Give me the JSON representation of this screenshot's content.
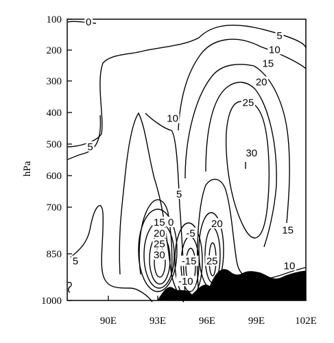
{
  "chart_data": {
    "type": "contour",
    "title": "",
    "xlabel": "",
    "ylabel": "hPa",
    "x_tick_labels": [
      "90E",
      "93E",
      "96E",
      "99E",
      "102E"
    ],
    "x_ticks": [
      90,
      93,
      96,
      99,
      102
    ],
    "xlim": [
      87.5,
      102
    ],
    "y_tick_labels": [
      "100",
      "200",
      "300",
      "400",
      "500",
      "600",
      "700",
      "850",
      "1000"
    ],
    "y_ticks": [
      100,
      200,
      300,
      400,
      500,
      600,
      700,
      850,
      1000
    ],
    "ylim": [
      100,
      1000
    ],
    "contour_levels": [
      -15,
      -10,
      -5,
      0,
      5,
      10,
      15,
      20,
      25,
      30
    ],
    "contour_labels": [
      {
        "text": "0",
        "lon": 88.8,
        "p": 115
      },
      {
        "text": "5",
        "lon": 100.4,
        "p": 160
      },
      {
        "text": "10",
        "lon": 100.1,
        "p": 205
      },
      {
        "text": "15",
        "lon": 99.7,
        "p": 250
      },
      {
        "text": "20",
        "lon": 99.3,
        "p": 310
      },
      {
        "text": "25",
        "lon": 98.5,
        "p": 375
      },
      {
        "text": "30",
        "lon": 98.7,
        "p": 535
      },
      {
        "text": "10",
        "lon": 93.9,
        "p": 425
      },
      {
        "text": "5",
        "lon": 88.9,
        "p": 515
      },
      {
        "text": "5",
        "lon": 94.3,
        "p": 665
      },
      {
        "text": "15",
        "lon": 93.1,
        "p": 755
      },
      {
        "text": "0",
        "lon": 93.8,
        "p": 755
      },
      {
        "text": "20",
        "lon": 93.1,
        "p": 790
      },
      {
        "text": "-5",
        "lon": 95.0,
        "p": 790
      },
      {
        "text": "20",
        "lon": 96.6,
        "p": 760
      },
      {
        "text": "25",
        "lon": 93.1,
        "p": 825
      },
      {
        "text": "-15",
        "lon": 94.9,
        "p": 880
      },
      {
        "text": "25",
        "lon": 96.3,
        "p": 880
      },
      {
        "text": "30",
        "lon": 93.1,
        "p": 860
      },
      {
        "text": "15",
        "lon": 100.9,
        "p": 780
      },
      {
        "text": "10",
        "lon": 101.0,
        "p": 895
      },
      {
        "text": "5",
        "lon": 88.0,
        "p": 880
      },
      {
        "text": "-10",
        "lon": 94.7,
        "p": 945
      }
    ],
    "grid": false,
    "legend": "none",
    "terrain_fill_color": "#000000",
    "line_color": "#000000"
  }
}
